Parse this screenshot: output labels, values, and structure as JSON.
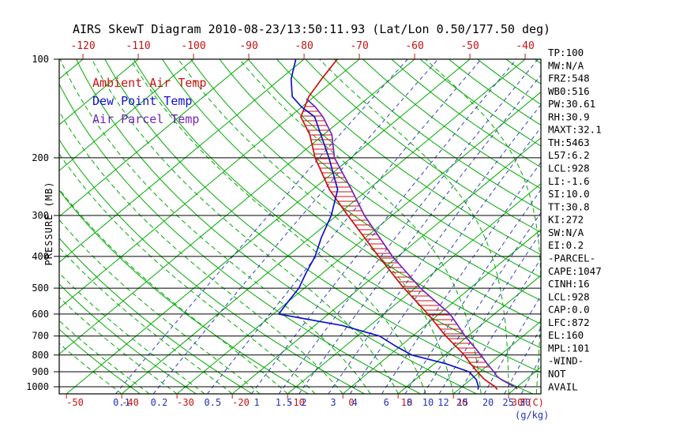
{
  "title": "AIRS SkewT Diagram 2010-08-23/13:50:11.93 (Lat/Lon 0.50/177.50 deg)",
  "legend": {
    "items": [
      {
        "label": "Ambient Air Temp",
        "color": "#cc1111"
      },
      {
        "label": "Dew Point Temp",
        "color": "#1111cc"
      },
      {
        "label": "Air Parcel Temp",
        "color": "#7722bb"
      }
    ]
  },
  "axes": {
    "pressure_label": "PRESSURE (MB)",
    "pressure_ticks": [
      100,
      200,
      300,
      400,
      500,
      600,
      700,
      800,
      900,
      1000
    ],
    "top_temp_ticks": [
      -120,
      -110,
      -100,
      -90,
      -80,
      -70,
      -60,
      -50,
      -40
    ],
    "bottom_temp_ticks": [
      -50,
      -40,
      -30,
      -20,
      -10,
      0,
      10,
      20,
      30
    ],
    "temp_unit_label": "T(C)",
    "mixing_ratio_ticks": [
      0.1,
      0.2,
      0.5,
      1,
      1.5,
      2,
      3,
      4,
      6,
      8,
      10,
      12,
      15,
      20,
      25,
      30
    ],
    "mixing_ratio_unit_label": "(g/kg)",
    "grid_green": "#00aa00",
    "mixing_line_color": "#3344bb",
    "temp_tick_color": "#cc1111",
    "mixing_tick_color": "#2233bb",
    "axis_color": "#000000"
  },
  "stats_panel": {
    "lines": [
      "TP:100",
      "MW:N/A",
      "FRZ:548",
      "WB0:516",
      "PW:30.61",
      "RH:30.9",
      "MAXT:32.1",
      "TH:5463",
      "L57:6.2",
      "LCL:928",
      "LI:-1.6",
      "SI:10.0",
      "TT:30.8",
      "KI:272",
      "SW:N/A",
      "EI:0.2",
      "-PARCEL-",
      "CAPE:1047",
      "CINH:16",
      "LCL:928",
      "CAP:0.0",
      "LFC:872",
      "EL:160",
      "MPL:101",
      "-WIND-",
      "NOT",
      "AVAIL"
    ]
  },
  "chart_data": {
    "type": "line",
    "title": "AIRS SkewT Diagram 2010-08-23/13:50:11.93 (Lat/Lon 0.50/177.50 deg)",
    "xlabel": "Temperature (C)",
    "ylabel": "Pressure (MB)",
    "y_scale": "log",
    "ylim": [
      100,
      1050
    ],
    "skew": "45deg isotherms",
    "series": [
      {
        "name": "Ambient Air Temp",
        "color": "#cc1111",
        "points": [
          [
            1020,
            27
          ],
          [
            1000,
            26
          ],
          [
            950,
            22.5
          ],
          [
            925,
            21
          ],
          [
            900,
            19.5
          ],
          [
            850,
            16.5
          ],
          [
            800,
            13.5
          ],
          [
            700,
            6
          ],
          [
            600,
            -2
          ],
          [
            500,
            -12
          ],
          [
            400,
            -23.5
          ],
          [
            300,
            -38
          ],
          [
            250,
            -47
          ],
          [
            200,
            -56.5
          ],
          [
            170,
            -62.5
          ],
          [
            150,
            -68
          ],
          [
            130,
            -71
          ],
          [
            115,
            -72.5
          ],
          [
            100,
            -74
          ]
        ]
      },
      {
        "name": "Dew Point Temp",
        "color": "#1111cc",
        "points": [
          [
            1020,
            23.5
          ],
          [
            1000,
            23
          ],
          [
            950,
            21
          ],
          [
            900,
            18
          ],
          [
            850,
            12
          ],
          [
            800,
            4
          ],
          [
            750,
            -1
          ],
          [
            700,
            -6
          ],
          [
            650,
            -15
          ],
          [
            600,
            -29
          ],
          [
            550,
            -30
          ],
          [
            500,
            -31
          ],
          [
            450,
            -33
          ],
          [
            400,
            -35
          ],
          [
            350,
            -38
          ],
          [
            300,
            -41
          ],
          [
            250,
            -45.5
          ],
          [
            200,
            -54
          ],
          [
            150,
            -65.5
          ],
          [
            140,
            -70
          ],
          [
            130,
            -74
          ],
          [
            115,
            -78
          ],
          [
            100,
            -81.5
          ]
        ]
      },
      {
        "name": "Air Parcel Temp",
        "color": "#7722bb",
        "points": [
          [
            1015,
            30.5
          ],
          [
            1000,
            29.5
          ],
          [
            950,
            25.5
          ],
          [
            928,
            24
          ],
          [
            900,
            22.5
          ],
          [
            850,
            19.5
          ],
          [
            800,
            16.5
          ],
          [
            700,
            9.5
          ],
          [
            600,
            2
          ],
          [
            500,
            -9
          ],
          [
            400,
            -21
          ],
          [
            300,
            -35
          ],
          [
            250,
            -43
          ],
          [
            200,
            -53
          ],
          [
            170,
            -58.5
          ],
          [
            150,
            -64
          ],
          [
            140,
            -67.5
          ],
          [
            132,
            -71
          ]
        ]
      }
    ],
    "cape_hatch": {
      "between": [
        "Air Parcel Temp",
        "Ambient Air Temp"
      ],
      "pressure_from": 872,
      "pressure_to": 135,
      "color": "#cc1111"
    }
  }
}
